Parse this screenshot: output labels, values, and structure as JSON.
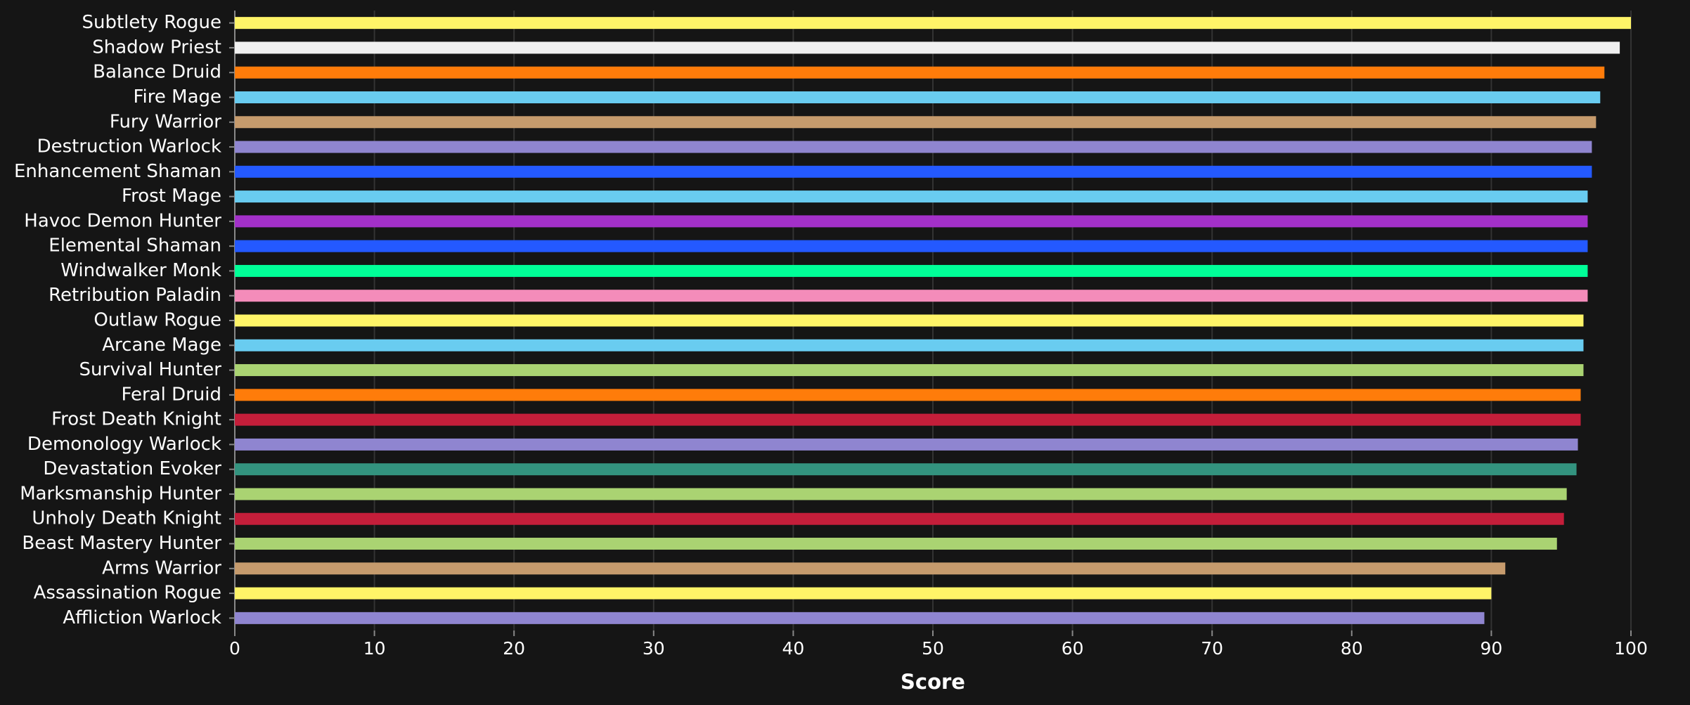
{
  "chart_data": {
    "type": "bar",
    "orientation": "horizontal",
    "x_label": "Score",
    "categories": [
      "Subtlety Rogue",
      "Shadow Priest",
      "Balance Druid",
      "Fire Mage",
      "Fury Warrior",
      "Destruction Warlock",
      "Enhancement Shaman",
      "Frost Mage",
      "Havoc Demon Hunter",
      "Elemental Shaman",
      "Windwalker Monk",
      "Retribution Paladin",
      "Outlaw Rogue",
      "Arcane Mage",
      "Survival Hunter",
      "Feral Druid",
      "Frost Death Knight",
      "Demonology Warlock",
      "Devastation Evoker",
      "Marksmanship Hunter",
      "Unholy Death Knight",
      "Beast Mastery Hunter",
      "Arms Warrior",
      "Assassination Rogue",
      "Affliction Warlock"
    ],
    "values": [
      100,
      99.2,
      98.1,
      97.8,
      97.5,
      97.2,
      97.2,
      96.9,
      96.9,
      96.9,
      96.9,
      96.9,
      96.6,
      96.6,
      96.6,
      96.4,
      96.4,
      96.2,
      96.1,
      95.4,
      95.2,
      94.7,
      91.0,
      90.0,
      89.5
    ],
    "colors": [
      "#fff468",
      "#f0f0f0",
      "#ff7c0a",
      "#69ccf0",
      "#c69b6d",
      "#8f85d0",
      "#2459ff",
      "#69ccf0",
      "#a330c9",
      "#2459ff",
      "#00ff98",
      "#f48cba",
      "#fff468",
      "#69ccf0",
      "#aad372",
      "#ff7c0a",
      "#c41e3a",
      "#8f85d0",
      "#33937f",
      "#aad372",
      "#c41e3a",
      "#aad372",
      "#c69b6d",
      "#fff468",
      "#8f85d0"
    ],
    "xlim": [
      0,
      100
    ],
    "xticks": [
      0,
      10,
      20,
      30,
      40,
      50,
      60,
      70,
      80,
      90,
      100
    ],
    "grid": true
  }
}
